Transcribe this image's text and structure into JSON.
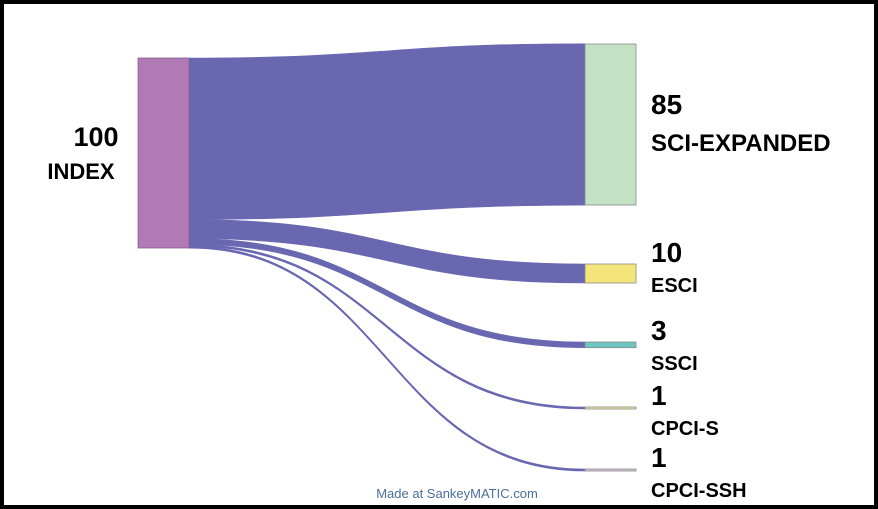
{
  "chart_data": {
    "type": "sankey",
    "source": {
      "name": "INDEX",
      "value": 100,
      "color": "#b07ab5"
    },
    "targets": [
      {
        "name": "SCI-EXPANDED",
        "value": 85,
        "color": "#c2e2c3"
      },
      {
        "name": "ESCI",
        "value": 10,
        "color": "#f4e57a"
      },
      {
        "name": "SSCI",
        "value": 3,
        "color": "#6cc6c0"
      },
      {
        "name": "CPCI-S",
        "value": 1,
        "color": "#e8e89a"
      },
      {
        "name": "CPCI-SSH",
        "value": 1,
        "color": "#d7c8dc"
      }
    ],
    "flow_color": "#6a67b1"
  },
  "credit": "Made at SankeyMATIC.com"
}
